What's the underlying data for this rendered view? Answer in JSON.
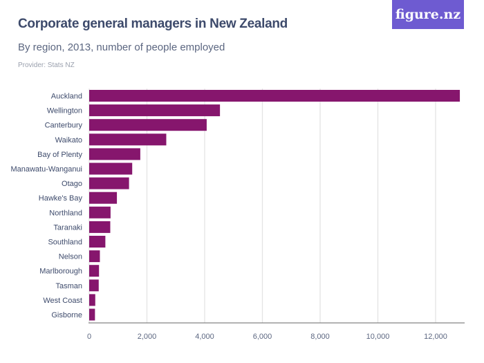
{
  "header": {
    "title": "Corporate general managers in New Zealand",
    "subtitle": "By region, 2013, number of people employed",
    "provider": "Provider: Stats NZ",
    "logo": "figure.nz"
  },
  "colors": {
    "bar": "#86166d",
    "logo_bg": "#6e5bd1",
    "text": "#3d4a6b"
  },
  "chart_data": {
    "type": "bar",
    "orientation": "horizontal",
    "categories": [
      "Auckland",
      "Wellington",
      "Canterbury",
      "Waikato",
      "Bay of Plenty",
      "Manawatu-Wanganui",
      "Otago",
      "Hawke's Bay",
      "Northland",
      "Taranaki",
      "Southland",
      "Nelson",
      "Marlborough",
      "Tasman",
      "West Coast",
      "Gisborne"
    ],
    "values": [
      12840,
      4530,
      4070,
      2670,
      1770,
      1490,
      1380,
      960,
      740,
      730,
      560,
      370,
      340,
      330,
      210,
      200
    ],
    "xlim": [
      0,
      12900
    ],
    "xticks": [
      0,
      2000,
      4000,
      6000,
      8000,
      10000,
      12000
    ],
    "xtick_labels": [
      "0",
      "2,000",
      "4,000",
      "6,000",
      "8,000",
      "10,000",
      "12,000"
    ],
    "grid": true
  }
}
